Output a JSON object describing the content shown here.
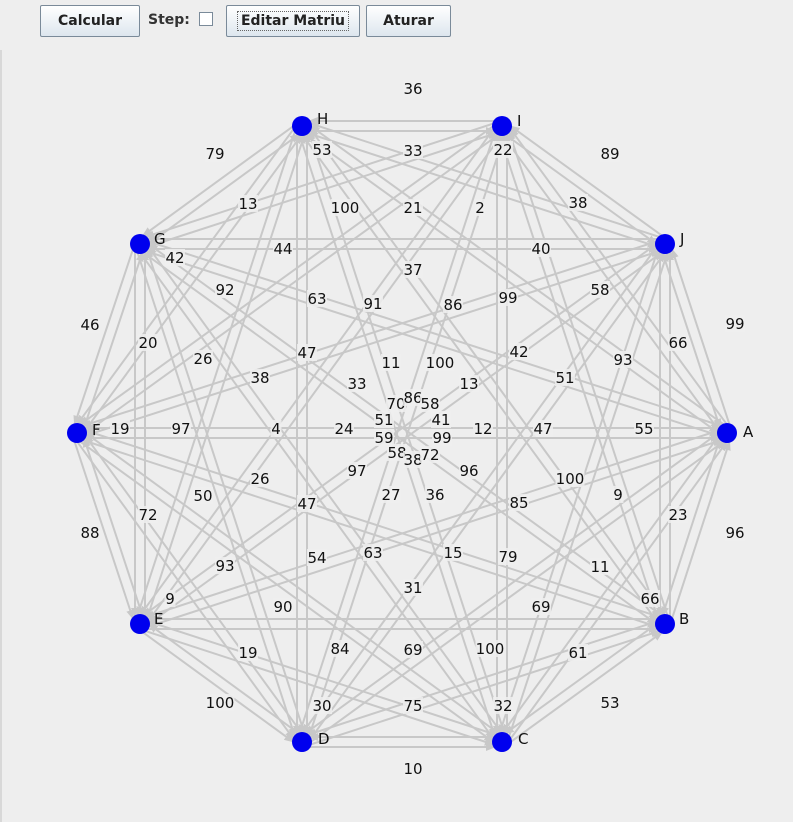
{
  "toolbar": {
    "calculate_label": "Calcular",
    "step_label": "Step:",
    "step_checked": false,
    "edit_matrix_label": "Editar Matriu",
    "stop_label": "Aturar"
  },
  "graph": {
    "node_color": "#0000ee",
    "edge_color": "#c8c8c8",
    "nodes": [
      "A",
      "B",
      "C",
      "D",
      "E",
      "F",
      "G",
      "H",
      "I",
      "J"
    ],
    "edge_weights": [
      "36",
      "79",
      "53",
      "33",
      "22",
      "89",
      "13",
      "100",
      "21",
      "2",
      "38",
      "42",
      "44",
      "40",
      "37",
      "92",
      "63",
      "91",
      "86",
      "99",
      "58",
      "99",
      "46",
      "20",
      "66",
      "47",
      "11",
      "100",
      "42",
      "26",
      "93",
      "38",
      "33",
      "13",
      "51",
      "70",
      "86",
      "58",
      "41",
      "51",
      "59",
      "99",
      "19",
      "97",
      "4",
      "24",
      "12",
      "47",
      "55",
      "58",
      "38",
      "72",
      "97",
      "96",
      "100",
      "26",
      "27",
      "36",
      "9",
      "50",
      "47",
      "85",
      "23",
      "72",
      "96",
      "88",
      "63",
      "15",
      "79",
      "54",
      "93",
      "11",
      "31",
      "9",
      "90",
      "69",
      "66",
      "19",
      "84",
      "69",
      "100",
      "61",
      "100",
      "30",
      "75",
      "32",
      "53",
      "10"
    ]
  }
}
